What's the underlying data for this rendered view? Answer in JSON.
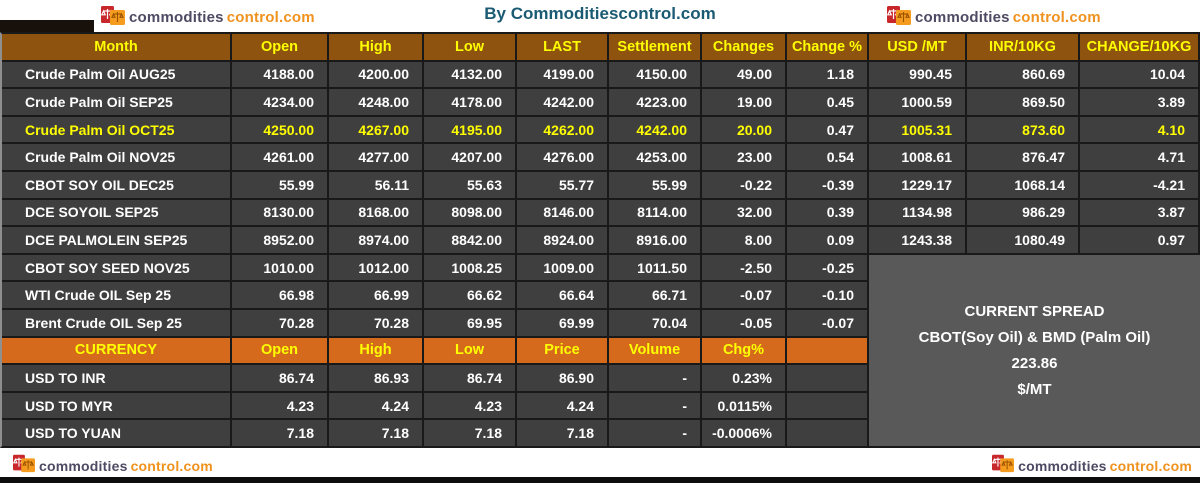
{
  "page": {
    "byline": "By Commoditiescontrol.com",
    "logo": {
      "part1": "commodities",
      "part2": "control.com"
    }
  },
  "colors": {
    "main_header_bg": "#8F5310",
    "currency_header_bg": "#D56A1C",
    "row_bg": "#3F3F3F",
    "spread_bg": "#595959",
    "highlight_text": "#FFFF00",
    "byline_text": "#1A5A73",
    "logo_dark": "#4E4A63",
    "logo_orange": "#F0921E"
  },
  "main_table": {
    "columns": [
      "Month",
      "Open",
      "High",
      "Low",
      "LAST",
      "Settlement",
      "Changes",
      "Change %",
      "USD /MT",
      "INR/10KG",
      "CHANGE/10KG"
    ],
    "rows": [
      {
        "month": "Crude Palm Oil AUG25",
        "highlight": false,
        "values": [
          "4188.00",
          "4200.00",
          "4132.00",
          "4199.00",
          "4150.00",
          "49.00",
          "1.18",
          "990.45",
          "860.69",
          "10.04"
        ]
      },
      {
        "month": "Crude Palm Oil SEP25",
        "highlight": false,
        "values": [
          "4234.00",
          "4248.00",
          "4178.00",
          "4242.00",
          "4223.00",
          "19.00",
          "0.45",
          "1000.59",
          "869.50",
          "3.89"
        ]
      },
      {
        "month": "Crude Palm Oil OCT25",
        "highlight": true,
        "values": [
          "4250.00",
          "4267.00",
          "4195.00",
          "4262.00",
          "4242.00",
          "20.00",
          "0.47",
          "1005.31",
          "873.60",
          "4.10"
        ]
      },
      {
        "month": "Crude Palm Oil NOV25",
        "highlight": false,
        "values": [
          "4261.00",
          "4277.00",
          "4207.00",
          "4276.00",
          "4253.00",
          "23.00",
          "0.54",
          "1008.61",
          "876.47",
          "4.71"
        ]
      },
      {
        "month": "CBOT SOY OIL DEC25",
        "highlight": false,
        "values": [
          "55.99",
          "56.11",
          "55.63",
          "55.77",
          "55.99",
          "-0.22",
          "-0.39",
          "1229.17",
          "1068.14",
          "-4.21"
        ]
      },
      {
        "month": "DCE SOYOIL SEP25",
        "highlight": false,
        "values": [
          "8130.00",
          "8168.00",
          "8098.00",
          "8146.00",
          "8114.00",
          "32.00",
          "0.39",
          "1134.98",
          "986.29",
          "3.87"
        ]
      },
      {
        "month": "DCE PALMOLEIN SEP25",
        "highlight": false,
        "values": [
          "8952.00",
          "8974.00",
          "8842.00",
          "8924.00",
          "8916.00",
          "8.00",
          "0.09",
          "1243.38",
          "1080.49",
          "0.97"
        ]
      },
      {
        "month": "CBOT SOY SEED NOV25",
        "highlight": false,
        "values": [
          "1010.00",
          "1012.00",
          "1008.25",
          "1009.00",
          "1011.50",
          "-2.50",
          "-0.25"
        ]
      },
      {
        "month": "WTI Crude OIL Sep 25",
        "highlight": false,
        "values": [
          "66.98",
          "66.99",
          "66.62",
          "66.64",
          "66.71",
          "-0.07",
          "-0.10"
        ]
      },
      {
        "month": "Brent Crude OIL Sep 25",
        "highlight": false,
        "values": [
          "70.28",
          "70.28",
          "69.95",
          "69.99",
          "70.04",
          "-0.05",
          "-0.07"
        ]
      }
    ]
  },
  "currency_table": {
    "columns": [
      "CURRENCY",
      "Open",
      "High",
      "Low",
      "Price",
      "Volume",
      "Chg%"
    ],
    "rows": [
      {
        "name": "USD TO INR",
        "values": [
          "86.74",
          "86.93",
          "86.74",
          "86.90",
          "-",
          "0.23%"
        ]
      },
      {
        "name": "USD TO MYR",
        "values": [
          "4.23",
          "4.24",
          "4.23",
          "4.24",
          "-",
          "0.0115%"
        ]
      },
      {
        "name": "USD TO YUAN",
        "values": [
          "7.18",
          "7.18",
          "7.18",
          "7.18",
          "-",
          "-0.0006%"
        ]
      }
    ]
  },
  "spread_box": {
    "title": "CURRENT SPREAD",
    "subtitle": "CBOT(Soy Oil) & BMD (Palm Oil)",
    "value": "223.86",
    "unit": "$/MT"
  }
}
